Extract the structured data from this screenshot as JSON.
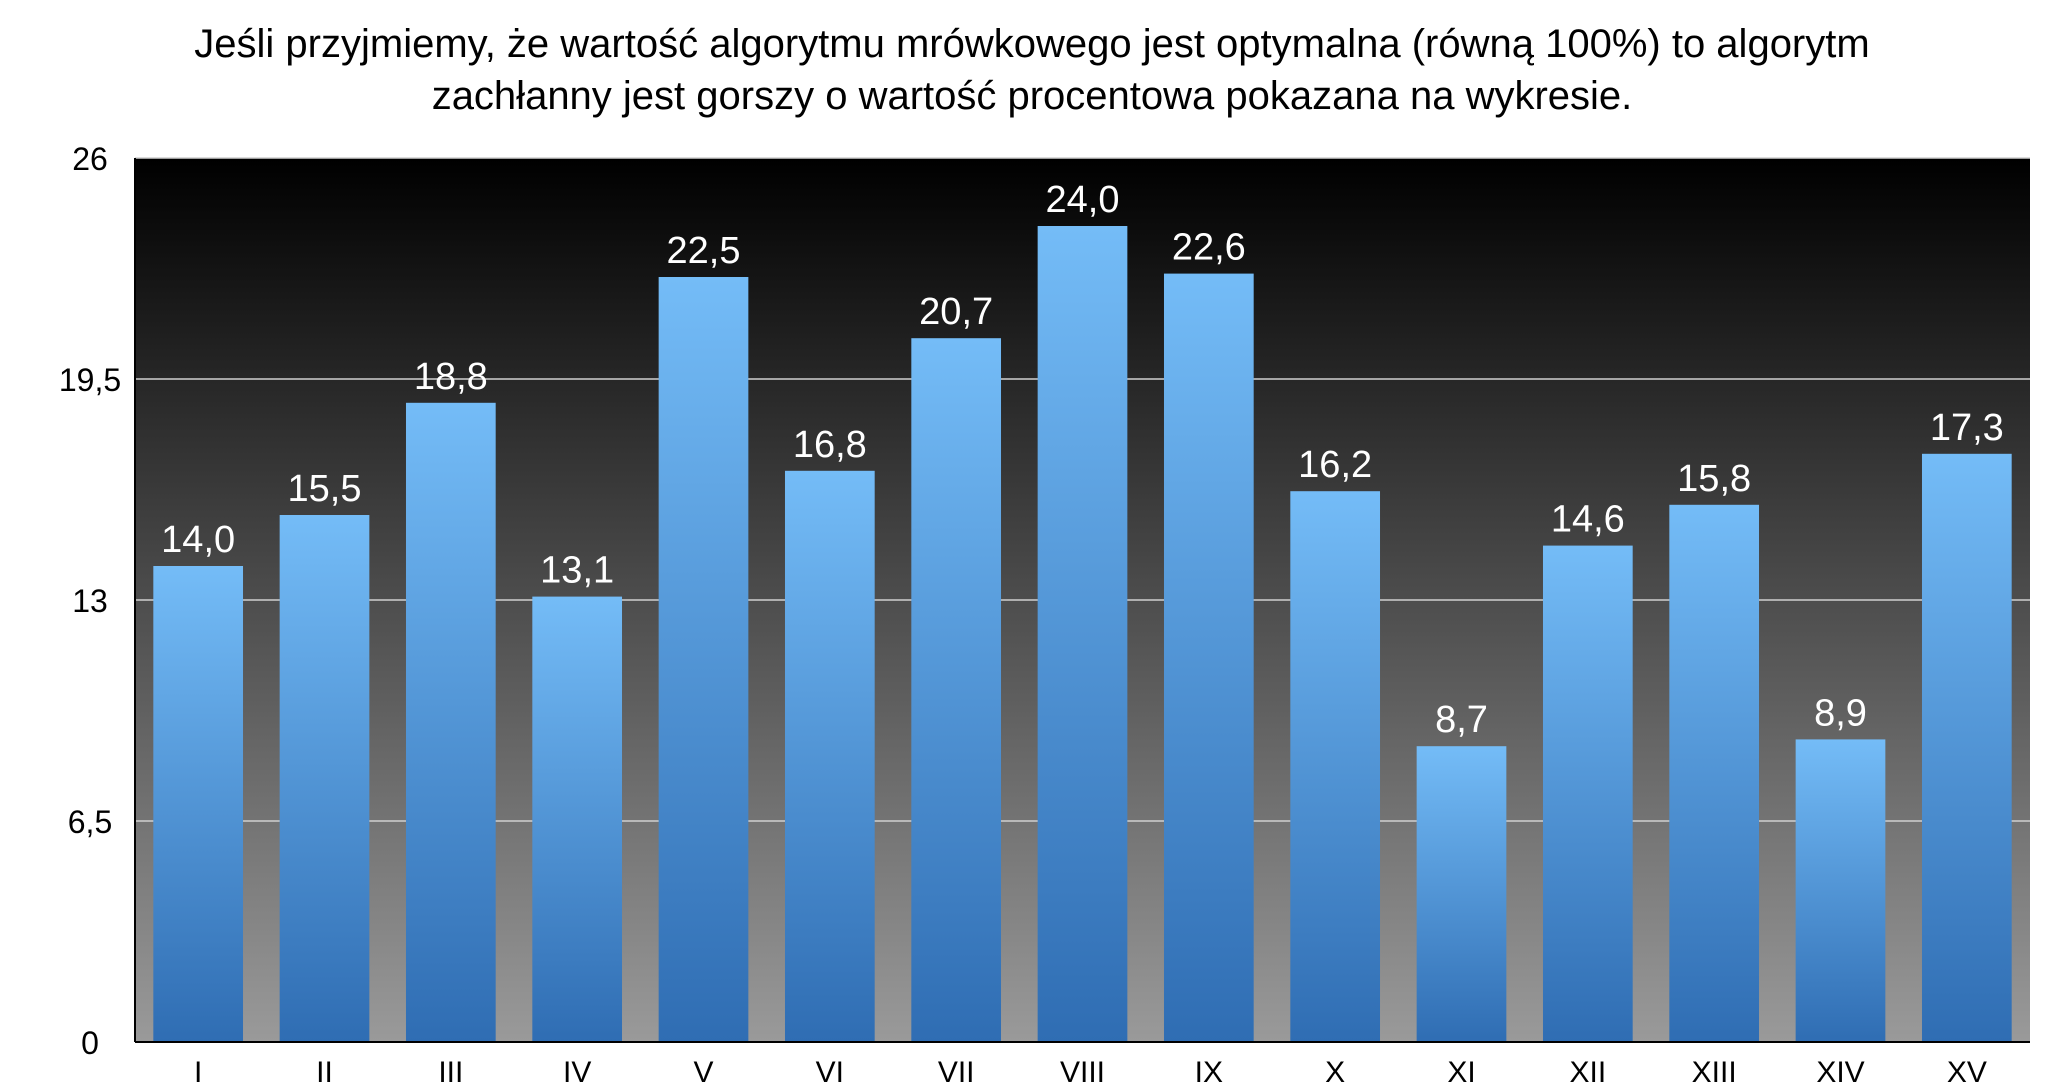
{
  "chart_data": {
    "type": "bar",
    "title_lines": [
      "Jeśli przyjmiemy, że wartość algorytmu mrówkowego jest optymalna (równą 100%) to algorytm",
      "zachłanny jest gorszy o wartość procentowa pokazana na wykresie."
    ],
    "categories": [
      "I",
      "II",
      "III",
      "IV",
      "V",
      "VI",
      "VII",
      "VIII",
      "IX",
      "X",
      "XI",
      "XII",
      "XIII",
      "XIV",
      "XV"
    ],
    "values": [
      14.0,
      15.5,
      18.8,
      13.1,
      22.5,
      16.8,
      20.7,
      24.0,
      22.6,
      16.2,
      8.7,
      14.6,
      15.8,
      8.9,
      17.3
    ],
    "value_labels": [
      "14,0",
      "15,5",
      "18,8",
      "13,1",
      "22,5",
      "16,8",
      "20,7",
      "24,0",
      "22,6",
      "16,2",
      "8,7",
      "14,6",
      "15,8",
      "8,9",
      "17,3"
    ],
    "yticks": [
      0,
      6.5,
      13,
      19.5,
      26
    ],
    "ytick_labels": [
      "0",
      "6,5",
      "13",
      "19,5",
      "26"
    ],
    "ylim": [
      0,
      26
    ],
    "grid": true,
    "colors": {
      "bar_top": "#74bcf7",
      "bar_bottom": "#2f6db3",
      "plot_bg_top": "#000000",
      "plot_bg_bottom": "#9a9a9a",
      "gridline": "#d0d0d0"
    }
  }
}
